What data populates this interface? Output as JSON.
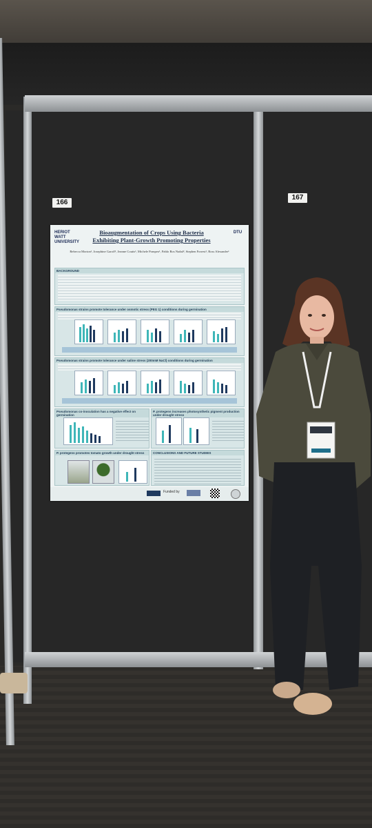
{
  "booth_numbers": {
    "left": "166",
    "right": "167"
  },
  "poster": {
    "title_line1": "Bioaugmentation of Crops Using Bacteria",
    "title_line2": "Exhibiting Plant-Growth Promoting Properties",
    "logo_left": "HERIOT WATT UNIVERSITY",
    "logo_right": "DTU",
    "authors": "Rebecca Morton¹, Josephine Garoff¹, Jeanne Coutts¹, Michele Pompeo¹, Pablo Ros Nuñal², Stephen Forrest¹, Ross Alexander¹",
    "sections": {
      "background": "BACKGROUND",
      "sec2": "Pseudomonas strains promote tolerance under osmotic stress (PEG 1) conditions during germination",
      "sec3": "Pseudomonas strains promote tolerance under saline stress (200mM NaCl) conditions during germination",
      "sec4a": "Pseudomonas co-inoculation has a negative effect on germination",
      "sec4b": "P. protegens promotes tomato growth under drought stress",
      "sec5a": "P. protegens increases photosynthetic pigment production under drought stress",
      "sec6": "CONCLUSIONS AND FUTURE STUDIES"
    },
    "footer": "Funded by"
  },
  "colors": {
    "board": "#272727",
    "frame": "#c4c8cb",
    "poster_bg": "#eef3f3",
    "bar_teal": "#3fb6b8",
    "bar_dark": "#1f3a5f",
    "shirt": "#4b4a3c",
    "jeans": "#1e2024"
  }
}
